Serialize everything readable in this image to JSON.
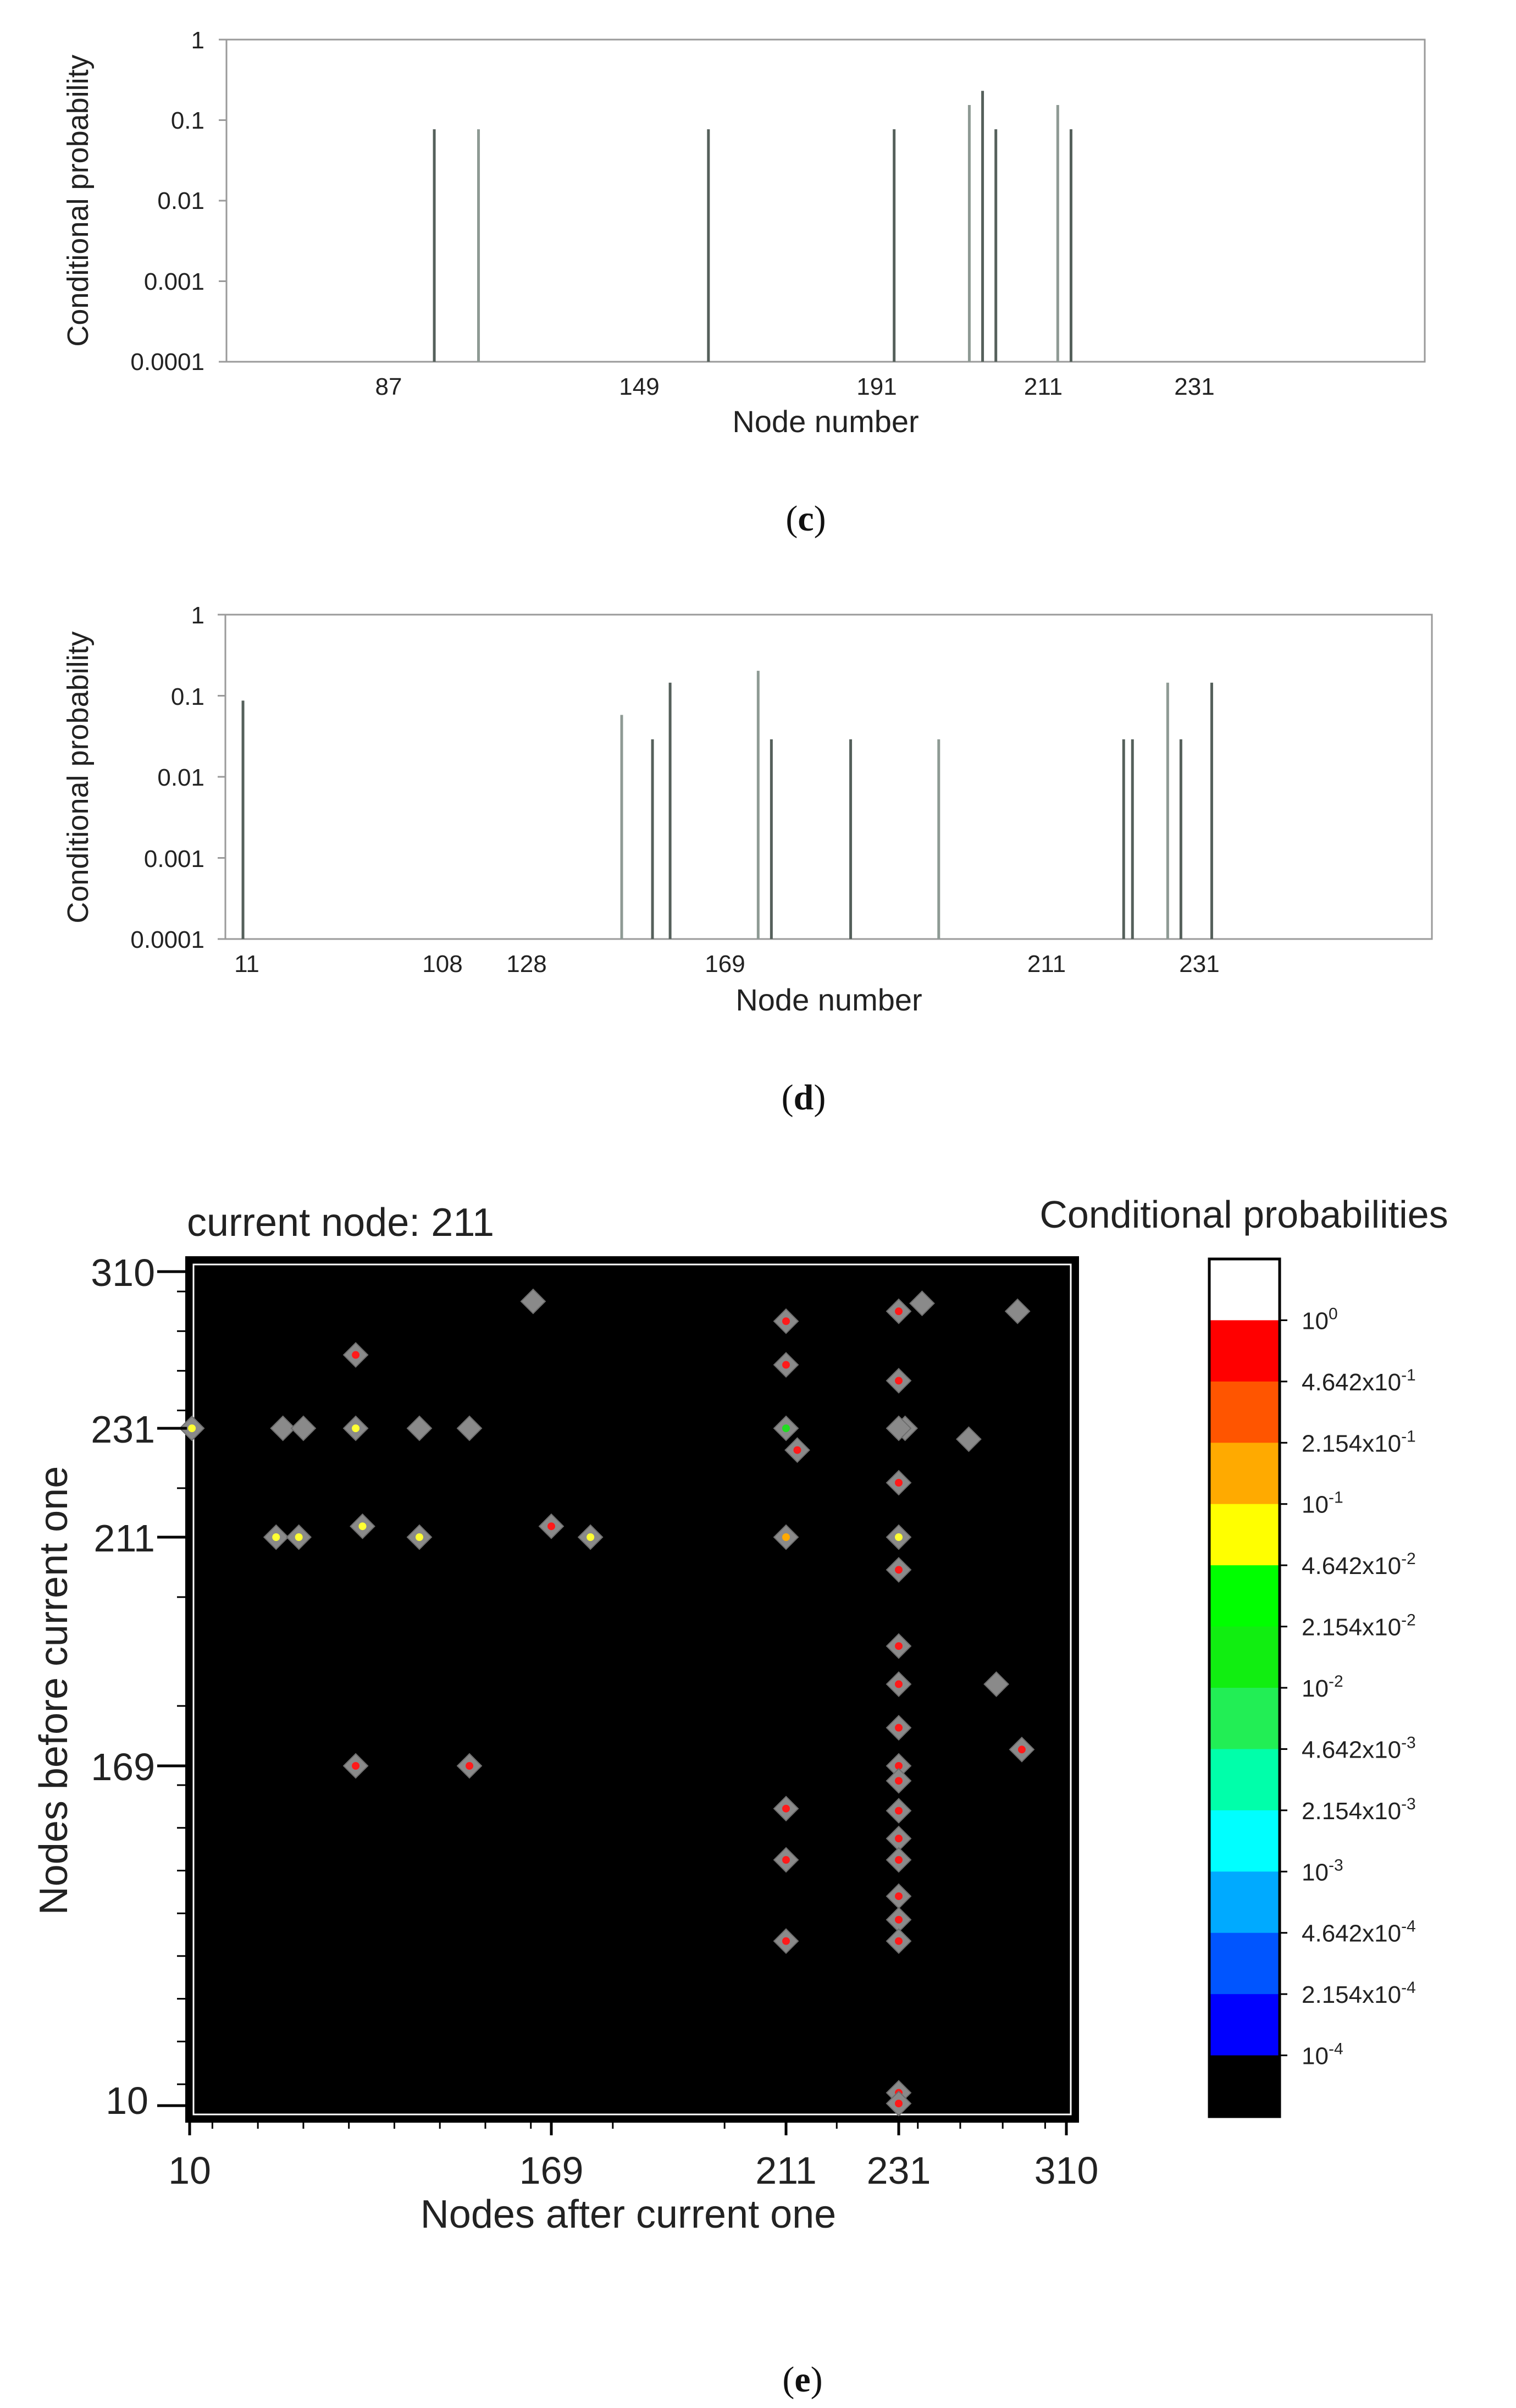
{
  "chart_data": [
    {
      "type": "bar",
      "caption": "(c)",
      "caption_letter": "c",
      "xlabel": "Node number",
      "ylabel": "Conditional probability",
      "yscale": "log",
      "ylim": [
        0.0001,
        1
      ],
      "xlim": [
        40,
        311
      ],
      "ytick_labels": [
        "1",
        "0.1",
        "0.01",
        "0.001",
        "0.0001"
      ],
      "xticks": [
        87,
        149,
        191,
        211,
        231
      ],
      "xtick_labels": [
        "87",
        "149",
        "191",
        "211",
        "231"
      ],
      "bars": [
        {
          "x": 87,
          "value": 0.077
        },
        {
          "x": 97,
          "value": 0.077
        },
        {
          "x": 149,
          "value": 0.077
        },
        {
          "x": 191,
          "value": 0.077
        },
        {
          "x": 208,
          "value": 0.154
        },
        {
          "x": 211,
          "value": 0.231
        },
        {
          "x": 214,
          "value": 0.077
        },
        {
          "x": 228,
          "value": 0.154
        },
        {
          "x": 231,
          "value": 0.077
        }
      ]
    },
    {
      "type": "bar",
      "caption": "(d)",
      "caption_letter": "d",
      "xlabel": "Node number",
      "ylabel": "Conditional probability",
      "yscale": "log",
      "ylim": [
        0.0001,
        1
      ],
      "xlim": [
        7,
        281
      ],
      "ytick_labels": [
        "1",
        "0.1",
        "0.01",
        "0.001",
        "0.0001"
      ],
      "xticks": [
        11,
        108,
        128,
        169,
        211,
        231
      ],
      "xtick_labels": [
        "11",
        "108",
        "128",
        "169",
        "211",
        "231"
      ],
      "bars": [
        {
          "x": 11,
          "value": 0.087
        },
        {
          "x": 97,
          "value": 0.058
        },
        {
          "x": 104,
          "value": 0.029
        },
        {
          "x": 108,
          "value": 0.145
        },
        {
          "x": 128,
          "value": 0.203
        },
        {
          "x": 131,
          "value": 0.029
        },
        {
          "x": 149,
          "value": 0.029
        },
        {
          "x": 169,
          "value": 0.029
        },
        {
          "x": 211,
          "value": 0.029
        },
        {
          "x": 213,
          "value": 0.029
        },
        {
          "x": 221,
          "value": 0.145
        },
        {
          "x": 224,
          "value": 0.029
        },
        {
          "x": 231,
          "value": 0.145
        }
      ]
    },
    {
      "type": "heatmap",
      "caption": "(e)",
      "caption_letter": "e",
      "annotation": "current node: 211",
      "xlabel": "Nodes after current one",
      "ylabel": "Nodes before current one",
      "xticks": [
        10,
        169,
        211,
        231,
        310
      ],
      "xtick_labels": [
        "10",
        "169",
        "211",
        "231",
        "310"
      ],
      "yticks": [
        10,
        169,
        211,
        231,
        310
      ],
      "ytick_labels": [
        "10",
        "169",
        "211",
        "231",
        "310"
      ],
      "colorbar": {
        "title": "Conditional probabilities",
        "labels": [
          {
            "mantissa": "",
            "exp": "0"
          },
          {
            "mantissa": "4.642x",
            "exp": "-1"
          },
          {
            "mantissa": "2.154x",
            "exp": "-1"
          },
          {
            "mantissa": "",
            "exp": "-1"
          },
          {
            "mantissa": "4.642x",
            "exp": "-2"
          },
          {
            "mantissa": "2.154x",
            "exp": "-2"
          },
          {
            "mantissa": "",
            "exp": "-2"
          },
          {
            "mantissa": "4.642x",
            "exp": "-3"
          },
          {
            "mantissa": "2.154x",
            "exp": "-3"
          },
          {
            "mantissa": "",
            "exp": "-3"
          },
          {
            "mantissa": "4.642x",
            "exp": "-4"
          },
          {
            "mantissa": "2.154x",
            "exp": "-4"
          },
          {
            "mantissa": "",
            "exp": "-4"
          }
        ],
        "colors": [
          "#ffffff",
          "#ff0000",
          "#ff5500",
          "#ffaa00",
          "#ffff00",
          "#00ff00",
          "#11ee11",
          "#22ee55",
          "#00ffaa",
          "#00ffff",
          "#00aaff",
          "#0055ff",
          "#0000ff",
          "#000000"
        ]
      },
      "points": [
        {
          "x": 11,
          "y": 231,
          "c": "yellow"
        },
        {
          "x": 51,
          "y": 231,
          "c": "gray"
        },
        {
          "x": 60,
          "y": 231,
          "c": "gray"
        },
        {
          "x": 83,
          "y": 231,
          "c": "yellow"
        },
        {
          "x": 111,
          "y": 231,
          "c": "gray"
        },
        {
          "x": 133,
          "y": 231,
          "c": "gray"
        },
        {
          "x": 211,
          "y": 231,
          "c": "green"
        },
        {
          "x": 213,
          "y": 227,
          "c": "red"
        },
        {
          "x": 234,
          "y": 231,
          "c": "gray"
        },
        {
          "x": 231,
          "y": 231,
          "c": "gray"
        },
        {
          "x": 264,
          "y": 229,
          "c": "gray"
        },
        {
          "x": 48,
          "y": 211,
          "c": "yellow"
        },
        {
          "x": 58,
          "y": 211,
          "c": "yellow"
        },
        {
          "x": 86,
          "y": 213,
          "c": "yellow"
        },
        {
          "x": 111,
          "y": 211,
          "c": "yellow"
        },
        {
          "x": 169,
          "y": 213,
          "c": "red"
        },
        {
          "x": 176,
          "y": 211,
          "c": "yellow"
        },
        {
          "x": 211,
          "y": 211,
          "c": "orange"
        },
        {
          "x": 231,
          "y": 211,
          "c": "yellow"
        },
        {
          "x": 231,
          "y": 205,
          "c": "red"
        },
        {
          "x": 83,
          "y": 268,
          "c": "red"
        },
        {
          "x": 161,
          "y": 295,
          "c": "gray"
        },
        {
          "x": 211,
          "y": 285,
          "c": "red"
        },
        {
          "x": 211,
          "y": 263,
          "c": "red"
        },
        {
          "x": 242,
          "y": 294,
          "c": "gray"
        },
        {
          "x": 231,
          "y": 290,
          "c": "red"
        },
        {
          "x": 231,
          "y": 255,
          "c": "red"
        },
        {
          "x": 231,
          "y": 221,
          "c": "red"
        },
        {
          "x": 287,
          "y": 290,
          "c": "gray"
        },
        {
          "x": 231,
          "y": 191,
          "c": "red"
        },
        {
          "x": 231,
          "y": 184,
          "c": "red"
        },
        {
          "x": 231,
          "y": 176,
          "c": "red"
        },
        {
          "x": 277,
          "y": 184,
          "c": "gray"
        },
        {
          "x": 289,
          "y": 172,
          "c": "red"
        },
        {
          "x": 83,
          "y": 169,
          "c": "red"
        },
        {
          "x": 133,
          "y": 169,
          "c": "red"
        },
        {
          "x": 231,
          "y": 169,
          "c": "red"
        },
        {
          "x": 231,
          "y": 162,
          "c": "red"
        },
        {
          "x": 211,
          "y": 149,
          "c": "red"
        },
        {
          "x": 231,
          "y": 148,
          "c": "red"
        },
        {
          "x": 231,
          "y": 135,
          "c": "red"
        },
        {
          "x": 211,
          "y": 125,
          "c": "red"
        },
        {
          "x": 231,
          "y": 125,
          "c": "red"
        },
        {
          "x": 231,
          "y": 108,
          "c": "red"
        },
        {
          "x": 231,
          "y": 97,
          "c": "red"
        },
        {
          "x": 211,
          "y": 87,
          "c": "red"
        },
        {
          "x": 231,
          "y": 87,
          "c": "red"
        },
        {
          "x": 231,
          "y": 16,
          "c": "red"
        },
        {
          "x": 231,
          "y": 11,
          "c": "red"
        }
      ]
    }
  ]
}
